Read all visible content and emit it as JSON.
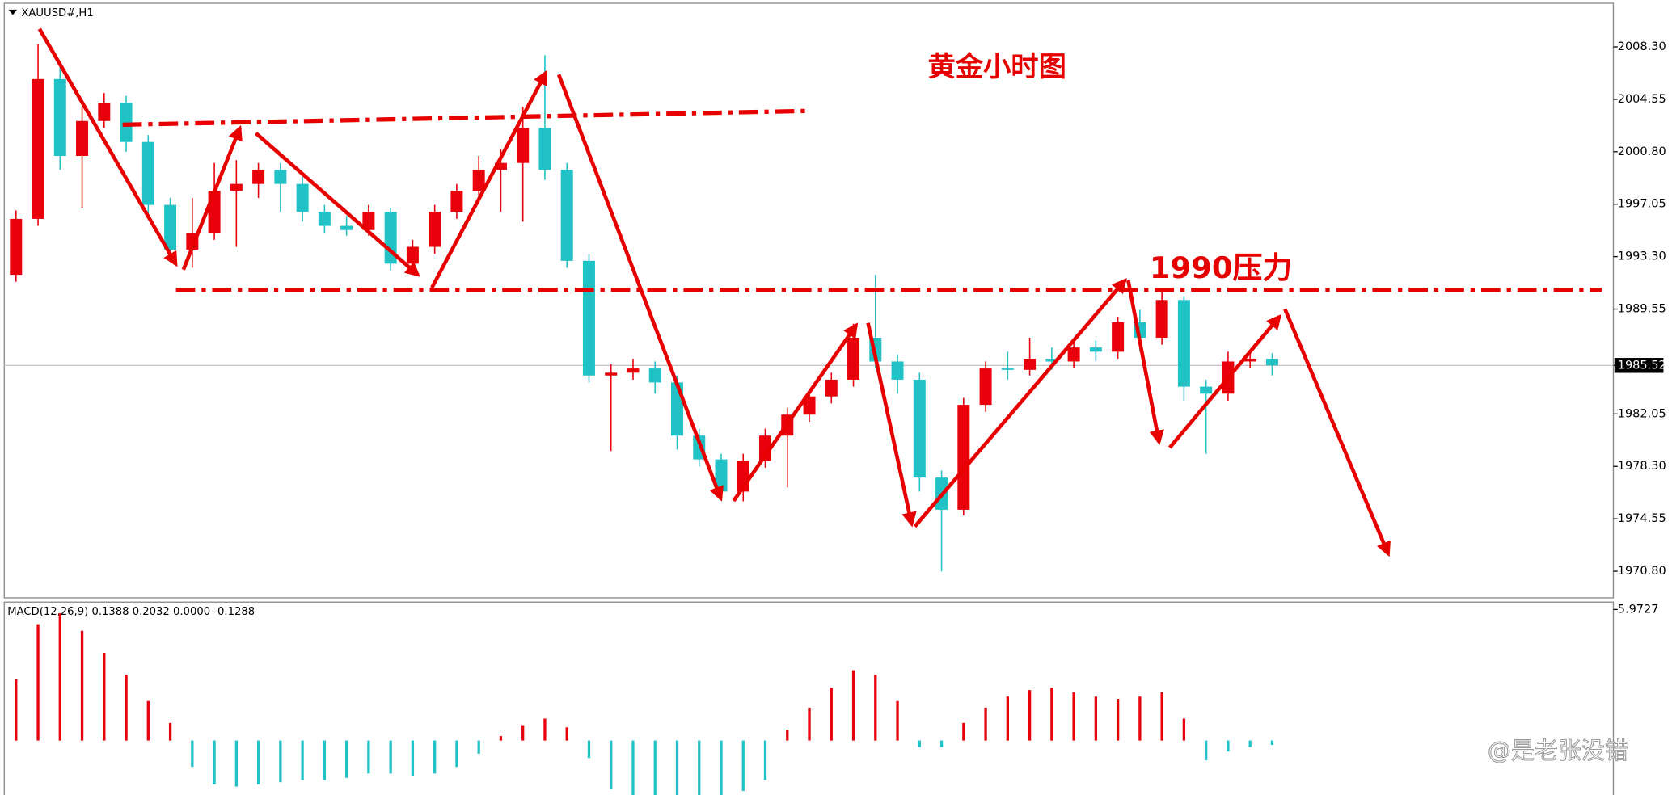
{
  "header": {
    "symbol": "XAUUSD#,H1"
  },
  "chart_data": [
    {
      "type": "candlestick",
      "title": "黄金小时图",
      "annotation": "1990压力",
      "open": [
        1992,
        1996,
        2006,
        2000.5,
        2003,
        2004.3,
        2001.5,
        1997,
        1993.8,
        1995,
        1998,
        1998.5,
        1999.5,
        1998.5,
        1996.5,
        1995.5,
        1995.2,
        1996.5,
        1992.8,
        1994,
        1996.5,
        1998,
        1999.5,
        2000,
        2002.5,
        1999.5,
        1993,
        1984.8,
        1985,
        1985.3,
        1984.3,
        1980.5,
        1978.8,
        1976.5,
        1978.7,
        1980.5,
        1982,
        1983.3,
        1984.5,
        1987.5,
        1985.8,
        1984.5,
        1977.5,
        1975.2,
        1982.7,
        1985.3,
        1985.2,
        1986,
        1985.8,
        1986.8,
        1986.5,
        1988.6,
        1987.5,
        1990.2,
        1984,
        1983.5,
        1985.8,
        1986
      ],
      "high": [
        1996.6,
        2008.5,
        2007,
        2004,
        2005,
        2004.8,
        2002,
        1997.5,
        1997.5,
        2000,
        2000.2,
        2000,
        2000,
        1999,
        1997,
        1996.2,
        1997,
        1996.8,
        1994.5,
        1997,
        1998.5,
        2000.5,
        2001,
        2004,
        2007.7,
        2000,
        1993.5,
        1985.6,
        1986,
        1985.8,
        1984.8,
        1981,
        1979.2,
        1979.2,
        1981,
        1982.5,
        1983.8,
        1985,
        1988.5,
        1992,
        1986.3,
        1985,
        1978,
        1983.2,
        1985.8,
        1986.5,
        1987.5,
        1986.8,
        1987.3,
        1987.3,
        1989,
        1989.5,
        1991,
        1990.5,
        1984.5,
        1986.5,
        1986.5,
        1986.4
      ],
      "low": [
        1991.5,
        1995.5,
        1999.5,
        1996.8,
        2002.5,
        2000.8,
        1996.3,
        1993.2,
        1992.5,
        1994.5,
        1994,
        1997.5,
        1996.5,
        1995.8,
        1995,
        1994.8,
        1994.8,
        1992.3,
        1992.3,
        1993.5,
        1996,
        1997.5,
        1996.5,
        1995.8,
        1998.8,
        1992.5,
        1984.3,
        1979.4,
        1984.5,
        1983.5,
        1979.5,
        1978.3,
        1976,
        1975.8,
        1978.2,
        1976.8,
        1981.5,
        1982.8,
        1984,
        1985.3,
        1983.5,
        1976.5,
        1970.8,
        1974.8,
        1982.2,
        1984.5,
        1984.8,
        1985.2,
        1985.3,
        1985.8,
        1986,
        1986.5,
        1987,
        1983,
        1979.2,
        1983,
        1985.3,
        1984.8
      ],
      "close": [
        1996,
        2006,
        2000.5,
        2003,
        2004.3,
        2001.5,
        1997,
        1993.8,
        1995,
        1998,
        1998.5,
        1999.5,
        1998.5,
        1996.5,
        1995.5,
        1995.2,
        1996.5,
        1992.8,
        1994,
        1996.5,
        1998,
        1999.5,
        2000,
        2002.5,
        1999.5,
        1993,
        1984.8,
        1985,
        1985.3,
        1984.3,
        1980.5,
        1978.8,
        1976.5,
        1978.7,
        1980.5,
        1982,
        1983.3,
        1984.5,
        1987.5,
        1985.8,
        1984.5,
        1977.5,
        1975.2,
        1982.7,
        1985.3,
        1985.2,
        1986,
        1985.8,
        1986.8,
        1986.5,
        1988.6,
        1987.5,
        1990.2,
        1984,
        1983.5,
        1985.8,
        1986,
        1985.52
      ],
      "up_color": "#e8000b",
      "down_color": "#20c2c6",
      "ylim": [
        1968.9,
        2011.42
      ],
      "yticks": [
        {
          "value": 2008.3,
          "label": "2008.30"
        },
        {
          "value": 2004.55,
          "label": "2004.55"
        },
        {
          "value": 2000.8,
          "label": "2000.80"
        },
        {
          "value": 1997.05,
          "label": "1997.05"
        },
        {
          "value": 1993.3,
          "label": "1993.30"
        },
        {
          "value": 1989.55,
          "label": "1989.55"
        },
        1985.52,
        {
          "value": 1982.05,
          "label": "1982.05"
        },
        {
          "value": 1978.3,
          "label": "1978.30"
        },
        {
          "value": 1974.55,
          "label": "1974.55"
        },
        {
          "value": 1970.8,
          "label": "1970.80"
        }
      ]
    },
    {
      "type": "macd-histogram",
      "label": "MACD(12,26,9) 0.1388 0.2032 0.0000 -0.1288",
      "values": [
        2.8,
        5.3,
        5.8,
        5.0,
        4.0,
        3.0,
        1.8,
        0.8,
        -1.2,
        -2.0,
        -2.1,
        -2.0,
        -1.9,
        -1.8,
        -1.8,
        -1.7,
        -1.5,
        -1.5,
        -1.6,
        -1.5,
        -1.2,
        -0.6,
        0.2,
        0.7,
        1.0,
        0.6,
        -0.8,
        -2.2,
        -2.6,
        -2.6,
        -2.6,
        -2.6,
        -2.5,
        -2.3,
        -1.8,
        0.5,
        1.5,
        2.4,
        3.2,
        3.0,
        1.8,
        -0.3,
        -0.3,
        0.8,
        1.5,
        2.0,
        2.3,
        2.4,
        2.2,
        2.0,
        1.9,
        2.0,
        2.2,
        1.0,
        -0.9,
        -0.5,
        -0.3,
        -0.2
      ],
      "positive_color": "#e8000b",
      "negative_color": "#20c2c6",
      "ylim": [
        -2.48,
        6.31
      ],
      "yticks": [
        5.9727
      ]
    }
  ],
  "watermark": "@是老张没错"
}
